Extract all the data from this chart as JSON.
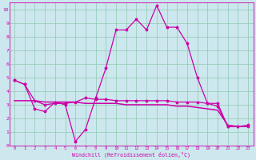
{
  "xlabel": "Windchill (Refroidissement éolien,°C)",
  "bg_color": "#cce8ee",
  "grid_color": "#99ccbb",
  "line_color": "#cc00aa",
  "xlim": [
    -0.5,
    23.5
  ],
  "ylim": [
    0,
    10.5
  ],
  "xticks": [
    0,
    1,
    2,
    3,
    4,
    5,
    6,
    7,
    8,
    9,
    10,
    11,
    12,
    13,
    14,
    15,
    16,
    17,
    18,
    19,
    20,
    21,
    22,
    23
  ],
  "yticks": [
    0,
    1,
    2,
    3,
    4,
    5,
    6,
    7,
    8,
    9,
    10
  ],
  "line1_x": [
    0,
    1,
    2,
    3,
    4,
    5,
    6,
    7,
    8,
    9,
    10,
    11,
    12,
    13,
    14,
    15,
    16,
    17,
    18,
    19,
    20,
    21,
    22,
    23
  ],
  "line1_y": [
    4.8,
    4.5,
    2.7,
    2.5,
    3.2,
    3.0,
    0.3,
    1.2,
    3.5,
    5.7,
    8.5,
    8.5,
    9.3,
    8.5,
    10.3,
    8.7,
    8.7,
    7.5,
    5.0,
    3.1,
    2.9,
    1.4,
    1.4,
    1.5
  ],
  "line2_x": [
    0,
    1,
    2,
    3,
    4,
    5,
    6,
    7,
    8,
    9,
    10,
    11,
    12,
    13,
    14,
    15,
    16,
    17,
    18,
    19,
    20,
    21,
    22,
    23
  ],
  "line2_y": [
    4.8,
    4.5,
    3.3,
    3.0,
    3.1,
    3.1,
    3.2,
    3.5,
    3.4,
    3.4,
    3.3,
    3.3,
    3.3,
    3.3,
    3.3,
    3.3,
    3.2,
    3.2,
    3.2,
    3.1,
    3.1,
    1.4,
    1.4,
    1.4
  ],
  "line3_x": [
    0,
    1,
    2,
    3,
    4,
    5,
    6,
    7,
    8,
    9,
    10,
    11,
    12,
    13,
    14,
    15,
    16,
    17,
    18,
    19,
    20,
    21,
    22,
    23
  ],
  "line3_y": [
    3.3,
    3.3,
    3.3,
    3.2,
    3.2,
    3.2,
    3.2,
    3.1,
    3.1,
    3.1,
    3.1,
    3.0,
    3.0,
    3.0,
    3.0,
    3.0,
    2.9,
    2.9,
    2.8,
    2.7,
    2.6,
    1.5,
    1.4,
    1.4
  ]
}
